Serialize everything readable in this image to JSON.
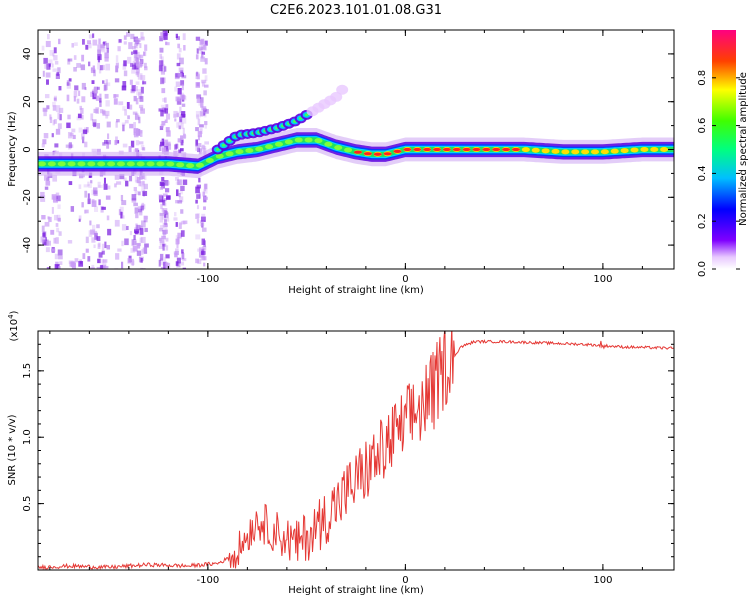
{
  "title": "C2E6.2023.101.01.08.G31",
  "chart_data": [
    {
      "type": "heatmap",
      "name": "spectrogram",
      "xlabel": "Height of straight line (km)",
      "ylabel": "Frequency (Hz)",
      "xlim": [
        -186,
        136
      ],
      "ylim": [
        -50,
        50
      ],
      "xticks": [
        -100,
        0,
        100
      ],
      "xtick_labels": [
        "-100",
        "0",
        "100"
      ],
      "yticks": [
        -40,
        -20,
        0,
        20,
        40
      ],
      "ytick_labels": [
        "-40",
        "-20",
        "0",
        "20",
        "40"
      ],
      "colorbar": {
        "label": "Normalized spectral amplitude",
        "range": [
          0,
          1
        ],
        "ticks": [
          0,
          0.2,
          0.4,
          0.6,
          0.8
        ],
        "tick_labels": [
          "0.0",
          "0.2",
          "0.4",
          "0.6",
          "0.8"
        ]
      },
      "main_line": [
        [
          -186,
          -6
        ],
        [
          -150,
          -6
        ],
        [
          -120,
          -6
        ],
        [
          -105,
          -7
        ],
        [
          -95,
          -3
        ],
        [
          -85,
          -1
        ],
        [
          -75,
          0
        ],
        [
          -65,
          2
        ],
        [
          -55,
          4
        ],
        [
          -45,
          4
        ],
        [
          -35,
          1
        ],
        [
          -25,
          -1
        ],
        [
          -17,
          -2
        ],
        [
          -10,
          -2
        ],
        [
          0,
          0
        ],
        [
          10,
          0
        ],
        [
          20,
          0
        ],
        [
          40,
          0
        ],
        [
          60,
          0
        ],
        [
          80,
          -1
        ],
        [
          100,
          -1
        ],
        [
          120,
          0
        ],
        [
          136,
          0
        ]
      ],
      "upper_branch": [
        [
          -95,
          0
        ],
        [
          -85,
          6
        ],
        [
          -75,
          7
        ],
        [
          -65,
          9
        ],
        [
          -55,
          12
        ],
        [
          -45,
          17
        ],
        [
          -35,
          22
        ],
        [
          -30,
          27
        ]
      ]
    },
    {
      "type": "line",
      "name": "snr",
      "xlabel": "Height of straight line (km)",
      "ylabel": "SNR (10 * v/v)",
      "scale_label": "(x10",
      "scale_exp": "4",
      "xlim": [
        -186,
        136
      ],
      "ylim": [
        0,
        1.8
      ],
      "xticks": [
        -100,
        0,
        100
      ],
      "xtick_labels": [
        "-100",
        "0",
        "100"
      ],
      "yticks": [
        0.5,
        1.0,
        1.5
      ],
      "ytick_labels": [
        "0.5",
        "1.0",
        "1.5"
      ],
      "color": "#e53935",
      "x": [
        -186,
        -170,
        -150,
        -130,
        -110,
        -95,
        -85,
        -75,
        -65,
        -55,
        -45,
        -35,
        -25,
        -15,
        -5,
        5,
        15,
        22,
        28,
        35,
        50,
        70,
        90,
        100,
        110,
        136
      ],
      "y": [
        0.02,
        0.03,
        0.02,
        0.04,
        0.03,
        0.05,
        0.12,
        0.35,
        0.25,
        0.15,
        0.28,
        0.45,
        0.62,
        0.78,
        0.95,
        1.12,
        1.3,
        1.55,
        1.68,
        1.72,
        1.72,
        1.71,
        1.7,
        1.69,
        1.68,
        1.67
      ]
    }
  ]
}
